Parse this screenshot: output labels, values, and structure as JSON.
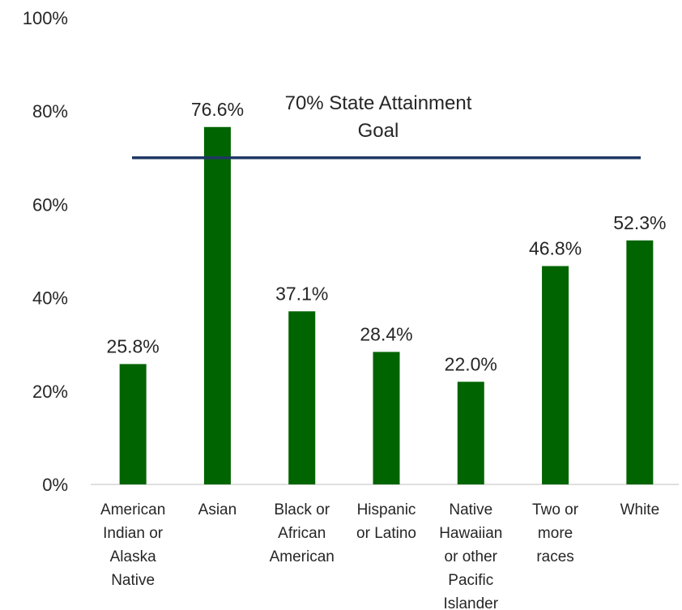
{
  "chart_data": {
    "type": "bar",
    "categories": [
      [
        "American",
        "Indian or",
        "Alaska",
        "Native"
      ],
      [
        "Asian"
      ],
      [
        "Black or",
        "African",
        "American"
      ],
      [
        "Hispanic",
        "or Latino"
      ],
      [
        "Native",
        "Hawaiian",
        "or other",
        "Pacific",
        "Islander"
      ],
      [
        "Two or",
        "more",
        "races"
      ],
      [
        "White"
      ]
    ],
    "values": [
      25.8,
      76.6,
      37.1,
      28.4,
      22.0,
      46.8,
      52.3
    ],
    "data_labels": [
      "25.8%",
      "76.6%",
      "37.1%",
      "28.4%",
      "22.0%",
      "46.8%",
      "52.3%"
    ],
    "ylim": [
      0,
      100
    ],
    "yticks": [
      0,
      20,
      40,
      60,
      80,
      100
    ],
    "ytick_labels": [
      "0%",
      "20%",
      "40%",
      "60%",
      "80%",
      "100%"
    ],
    "grid": false,
    "bar_color": "#006400",
    "reference_line": {
      "value": 70,
      "label_lines": [
        "70% State Attainment",
        "Goal"
      ],
      "color": "#1f3864"
    },
    "axis_color": "#bfbfbf"
  }
}
